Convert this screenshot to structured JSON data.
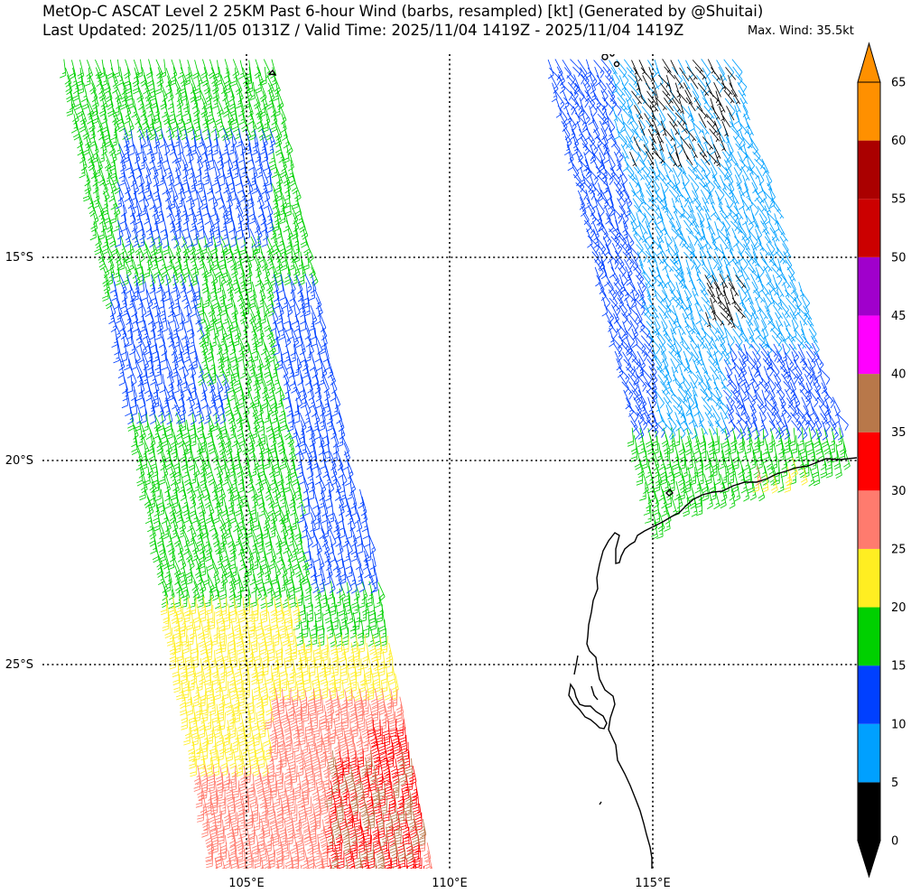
{
  "title_line1": "MetOp-C ASCAT Level 2 25KM Past 6-hour Wind (barbs, resampled) [kt] (Generated by @Shuitai)",
  "title_line2": "Last Updated: 2025/11/05 0131Z / Valid Time: 2025/11/04 1419Z - 2025/11/04 1419Z",
  "max_wind": "Max. Wind: 35.5kt",
  "map": {
    "lat_labels": [
      "15°S",
      "20°S",
      "25°S"
    ],
    "lon_labels": [
      "105°E",
      "110°E",
      "115°E"
    ]
  },
  "colorbar": {
    "tick_labels": [
      "0",
      "5",
      "10",
      "15",
      "20",
      "25",
      "30",
      "35",
      "40",
      "45",
      "50",
      "55",
      "60",
      "65"
    ],
    "bins": [
      {
        "from": 0,
        "to": 5,
        "color": "#000000"
      },
      {
        "from": 5,
        "to": 10,
        "color": "#00a0ff"
      },
      {
        "from": 10,
        "to": 15,
        "color": "#0040ff"
      },
      {
        "from": 15,
        "to": 20,
        "color": "#00d000"
      },
      {
        "from": 20,
        "to": 25,
        "color": "#ffee22"
      },
      {
        "from": 25,
        "to": 30,
        "color": "#ff7b6e"
      },
      {
        "from": 30,
        "to": 35,
        "color": "#ff0000"
      },
      {
        "from": 35,
        "to": 40,
        "color": "#b8784a"
      },
      {
        "from": 40,
        "to": 45,
        "color": "#ff00ff"
      },
      {
        "from": 45,
        "to": 50,
        "color": "#a000cc"
      },
      {
        "from": 50,
        "to": 55,
        "color": "#cc0000"
      },
      {
        "from": 55,
        "to": 60,
        "color": "#aa0000"
      },
      {
        "from": 60,
        "to": 65,
        "color": "#ff9000"
      }
    ],
    "under_color": "#000000",
    "over_color": "#ff9000"
  }
}
